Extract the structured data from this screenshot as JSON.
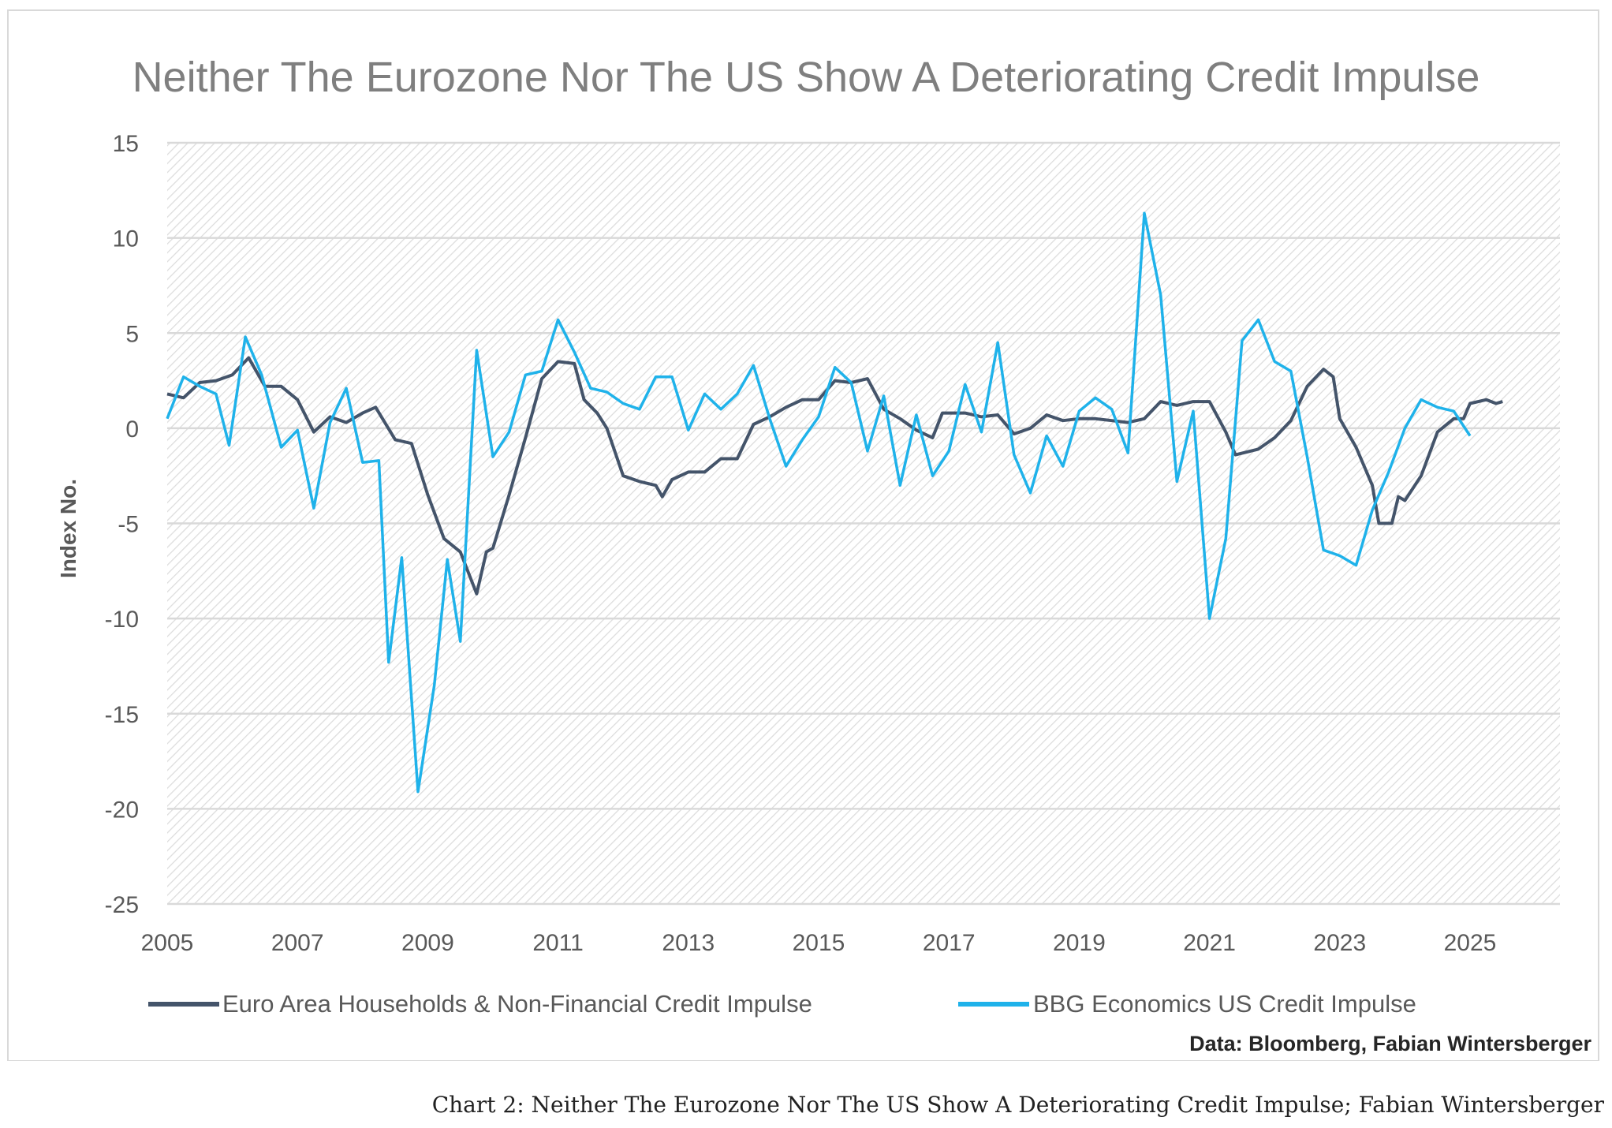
{
  "chart_data": {
    "type": "line",
    "title": "Neither The Eurozone Nor The US Show A Deteriorating Credit Impulse",
    "xlabel": "",
    "ylabel": "Index No.",
    "ylim": [
      -25,
      15
    ],
    "xlim": [
      2005,
      2026.4
    ],
    "yticks": [
      15,
      10,
      5,
      0,
      -5,
      -10,
      -15,
      -20,
      -25
    ],
    "xticks": [
      2005,
      2007,
      2009,
      2011,
      2013,
      2015,
      2017,
      2019,
      2021,
      2023,
      2025
    ],
    "grid": true,
    "legend_position": "bottom",
    "source_note": "Data: Bloomberg, Fabian Wintersberger",
    "series": [
      {
        "name": "Euro Area Households & Non-Financial Credit Impulse",
        "color": "#44546a",
        "x": [
          2005.0,
          2005.25,
          2005.5,
          2005.75,
          2006.0,
          2006.25,
          2006.5,
          2006.75,
          2007.0,
          2007.25,
          2007.5,
          2007.75,
          2008.0,
          2008.2,
          2008.5,
          2008.75,
          2009.0,
          2009.25,
          2009.5,
          2009.75,
          2009.9,
          2010.0,
          2010.25,
          2010.5,
          2010.75,
          2011.0,
          2011.25,
          2011.4,
          2011.6,
          2011.75,
          2012.0,
          2012.25,
          2012.5,
          2012.6,
          2012.75,
          2013.0,
          2013.25,
          2013.5,
          2013.75,
          2014.0,
          2014.25,
          2014.5,
          2014.75,
          2015.0,
          2015.25,
          2015.5,
          2015.75,
          2016.0,
          2016.25,
          2016.5,
          2016.75,
          2016.9,
          2017.25,
          2017.5,
          2017.75,
          2018.0,
          2018.25,
          2018.5,
          2018.75,
          2019.0,
          2019.25,
          2019.5,
          2019.75,
          2020.0,
          2020.25,
          2020.5,
          2020.75,
          2021.0,
          2021.25,
          2021.4,
          2021.75,
          2022.0,
          2022.25,
          2022.5,
          2022.75,
          2022.9,
          2023.0,
          2023.25,
          2023.5,
          2023.6,
          2023.8,
          2023.9,
          2024.0,
          2024.25,
          2024.5,
          2024.75,
          2024.9,
          2025.0,
          2025.25,
          2025.4,
          2025.5
        ],
        "values": [
          1.8,
          1.6,
          2.4,
          2.5,
          2.8,
          3.7,
          2.2,
          2.2,
          1.5,
          -0.2,
          0.6,
          0.3,
          0.8,
          1.1,
          -0.6,
          -0.8,
          -3.5,
          -5.8,
          -6.5,
          -8.7,
          -6.5,
          -6.3,
          -3.5,
          -0.5,
          2.6,
          3.5,
          3.4,
          1.5,
          0.8,
          0.0,
          -2.5,
          -2.8,
          -3.0,
          -3.6,
          -2.7,
          -2.3,
          -2.3,
          -1.6,
          -1.6,
          0.2,
          0.6,
          1.1,
          1.5,
          1.5,
          2.5,
          2.4,
          2.6,
          1.0,
          0.5,
          -0.1,
          -0.5,
          0.8,
          0.8,
          0.6,
          0.7,
          -0.3,
          0.0,
          0.7,
          0.4,
          0.5,
          0.5,
          0.4,
          0.3,
          0.5,
          1.4,
          1.2,
          1.4,
          1.4,
          -0.2,
          -1.4,
          -1.1,
          -0.5,
          0.4,
          2.2,
          3.1,
          2.7,
          0.5,
          -1.0,
          -3.0,
          -5.0,
          -5.0,
          -3.6,
          -3.8,
          -2.5,
          -0.2,
          0.5,
          0.5,
          1.3,
          1.5,
          1.3,
          1.4
        ]
      },
      {
        "name": "BBG Economics US Credit Impulse",
        "color": "#1fb2ea",
        "x": [
          2005.0,
          2005.25,
          2005.5,
          2005.75,
          2005.95,
          2006.2,
          2006.45,
          2006.75,
          2007.0,
          2007.25,
          2007.5,
          2007.75,
          2008.0,
          2008.25,
          2008.4,
          2008.6,
          2008.85,
          2009.1,
          2009.3,
          2009.5,
          2009.75,
          2010.0,
          2010.25,
          2010.5,
          2010.75,
          2011.0,
          2011.25,
          2011.5,
          2011.75,
          2012.0,
          2012.25,
          2012.5,
          2012.75,
          2013.0,
          2013.25,
          2013.5,
          2013.75,
          2014.0,
          2014.25,
          2014.5,
          2014.75,
          2015.0,
          2015.25,
          2015.5,
          2015.75,
          2016.0,
          2016.25,
          2016.5,
          2016.75,
          2017.0,
          2017.25,
          2017.5,
          2017.75,
          2018.0,
          2018.25,
          2018.5,
          2018.75,
          2019.0,
          2019.25,
          2019.5,
          2019.75,
          2020.0,
          2020.25,
          2020.5,
          2020.75,
          2021.0,
          2021.25,
          2021.5,
          2021.75,
          2022.0,
          2022.25,
          2022.5,
          2022.75,
          2023.0,
          2023.25,
          2023.5,
          2023.75,
          2024.0,
          2024.25,
          2024.5,
          2024.75,
          2025.0
        ],
        "values": [
          0.5,
          2.7,
          2.2,
          1.8,
          -0.9,
          4.8,
          2.8,
          -1.0,
          -0.1,
          -4.2,
          0.3,
          2.1,
          -1.8,
          -1.7,
          -12.3,
          -6.8,
          -19.1,
          -13.5,
          -6.9,
          -11.2,
          4.1,
          -1.5,
          -0.2,
          2.8,
          3.0,
          5.7,
          4.0,
          2.1,
          1.9,
          1.3,
          1.0,
          2.7,
          2.7,
          -0.1,
          1.8,
          1.0,
          1.8,
          3.3,
          0.5,
          -2.0,
          -0.6,
          0.6,
          3.2,
          2.4,
          -1.2,
          1.7,
          -3.0,
          0.7,
          -2.5,
          -1.2,
          2.3,
          -0.2,
          4.5,
          -1.4,
          -3.4,
          -0.4,
          -2.0,
          0.9,
          1.6,
          1.0,
          -1.3,
          11.3,
          7.0,
          -2.8,
          0.9,
          -10.0,
          -5.8,
          4.6,
          5.7,
          3.5,
          3.0,
          -1.5,
          -6.4,
          -6.7,
          -7.2,
          -4.3,
          -2.3,
          0.0,
          1.5,
          1.1,
          0.9,
          -0.4
        ]
      }
    ]
  },
  "caption": "Chart 2: Neither The Eurozone Nor The US Show A Deteriorating Credit Impulse; Fabian Wintersberger"
}
